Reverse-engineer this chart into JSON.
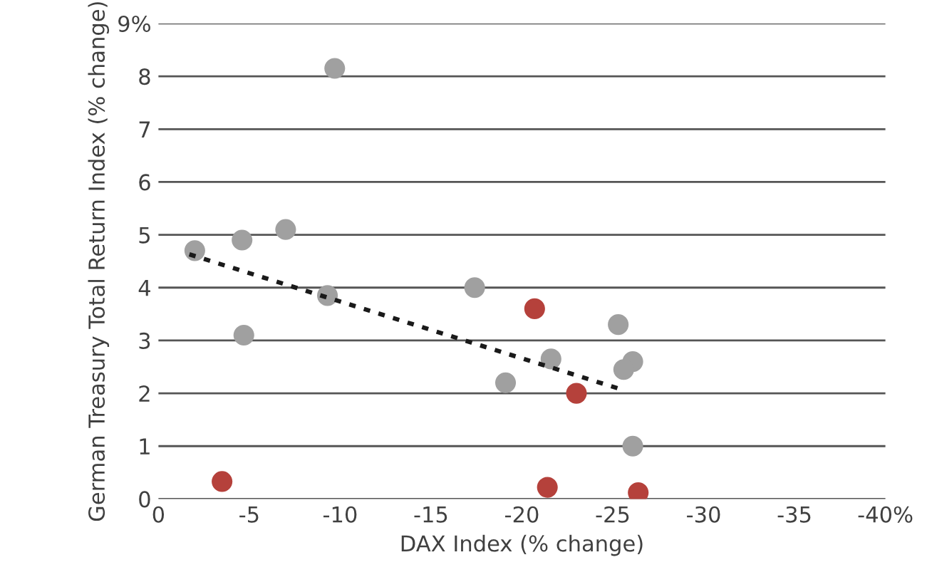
{
  "chart_data": {
    "type": "scatter",
    "xlabel": "DAX Index (% change)",
    "ylabel": "German Treasury Total Return Index (% change)",
    "xlim": [
      0,
      -40
    ],
    "xticks": [
      0,
      -5,
      -10,
      -15,
      -20,
      -25,
      -30,
      -35,
      {
        "value": -40,
        "label": "-40%"
      }
    ],
    "ylim": [
      0,
      9
    ],
    "yticks": [
      0,
      1,
      2,
      3,
      4,
      5,
      6,
      7,
      8,
      {
        "value": 9,
        "label": "9%"
      }
    ],
    "grid": "y",
    "series": [
      {
        "color": "#a0a0a0",
        "marker": "circle",
        "x": [
          -2.0,
          -4.6,
          -7.0,
          -9.7,
          -9.3,
          -4.7,
          -17.4,
          -19.1,
          -21.6,
          -25.3,
          -26.1,
          -25.6,
          -26.1
        ],
        "values": [
          4.7,
          4.9,
          5.1,
          8.15,
          3.85,
          3.1,
          4.0,
          2.2,
          2.65,
          3.3,
          2.6,
          2.45,
          1.0
        ]
      },
      {
        "color": "#b5413b",
        "marker": "circle",
        "x": [
          -3.5,
          -20.7,
          -23.0,
          -21.4,
          -26.4
        ],
        "values": [
          0.33,
          3.6,
          2.0,
          0.22,
          0.12
        ]
      },
      {
        "type": "line",
        "color": "#1a1a1a",
        "line_style": "dotted",
        "x": [
          -1.7,
          -25.5
        ],
        "values": [
          4.63,
          2.07
        ]
      }
    ]
  }
}
